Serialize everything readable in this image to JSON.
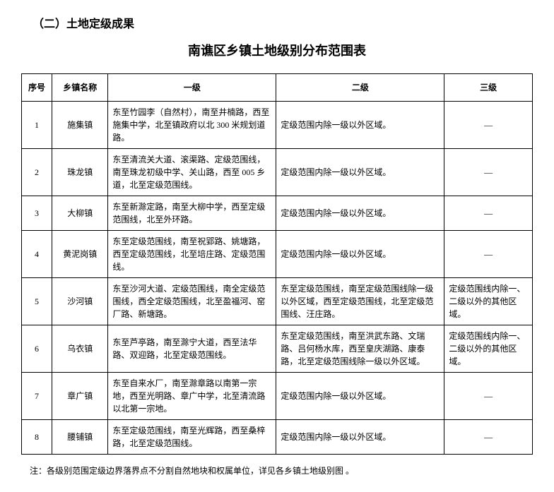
{
  "section_title": "（二）土地定级成果",
  "table_title": "南谯区乡镇土地级别分布范围表",
  "columns": [
    "序号",
    "乡镇名称",
    "一级",
    "二级",
    "三级"
  ],
  "rows": [
    {
      "seq": "1",
      "name": "施集镇",
      "l1": "东至竹园李（自然村），南至井楠路，西至施集中学，北至镇政府以北 300 米规划道路。",
      "l2": "定级范围内除一级以外区域。",
      "l3": "—"
    },
    {
      "seq": "2",
      "name": "珠龙镇",
      "l1": "东至清流关大道、滚渠路、定级范围线，南至珠龙初级中学、关山路，西至 005 乡道，北至定级范围线。",
      "l2": "定级范围内除一级以外区域。",
      "l3": "—"
    },
    {
      "seq": "3",
      "name": "大柳镇",
      "l1": "东至新滁定路，南至大柳中学，西至定级范围线，北至外环路。",
      "l2": "定级范围内除一级以外区域。",
      "l3": "—"
    },
    {
      "seq": "4",
      "name": "黄泥岗镇",
      "l1": "东至定级范围线，南至祝郢路、姚塘路，西至定级范围线，北至培庄路、定级范围线。",
      "l2": "定级范围内除一级以外区域。",
      "l3": "—"
    },
    {
      "seq": "5",
      "name": "沙河镇",
      "l1": "东至沙河大道、定级范围线，南全定级范围线，西全定级范围线，北至盈福河、窑厂路、新塘路。",
      "l2": "东至定级范围线，南至定级范围线除一级以外区域，西至定级范围线，北至定级范围线、汪庄路。",
      "l3": "定级范围线内除一、二级以外的其他区域。"
    },
    {
      "seq": "6",
      "name": "乌衣镇",
      "l1": "东至芦亭路，南至滁宁大道，西至法华路、双迎路，北至定级范围线。",
      "l2": "东至定级范围线，南至洪武东路、文瑞路、吕何杨水库，西至皇庆湖路、康泰路，北至定级范围线除一级以外区域。",
      "l3": "定级范围线内除一、二级以外的其他区域。"
    },
    {
      "seq": "7",
      "name": "章广镇",
      "l1": "东至自来水厂，南至滁章路以南第一宗地，西至光明路、章广中学，北至清流路以北第一宗地。",
      "l2": "定级范围内除一级以外区域。",
      "l3": "—"
    },
    {
      "seq": "8",
      "name": "腰铺镇",
      "l1": "东至定级范围线，南至光辉路，西至桑梓路，北至定级范围线。",
      "l2": "定级范围内除一级以外区域。",
      "l3": "—"
    }
  ],
  "footnote": "注：各级别范围定级边界落界点不分割自然地块和权属单位，详见各乡镇土地级别图 。",
  "style": {
    "font_family": "SimSun",
    "base_fontsize": 12,
    "title_fontsize": 18,
    "section_fontsize": 16,
    "text_color": "#000000",
    "background_color": "#ffffff",
    "border_color": "#000000",
    "col_widths": {
      "seq": 38,
      "name": 70,
      "l1": 210,
      "l2": 210,
      "l3": 110
    }
  }
}
